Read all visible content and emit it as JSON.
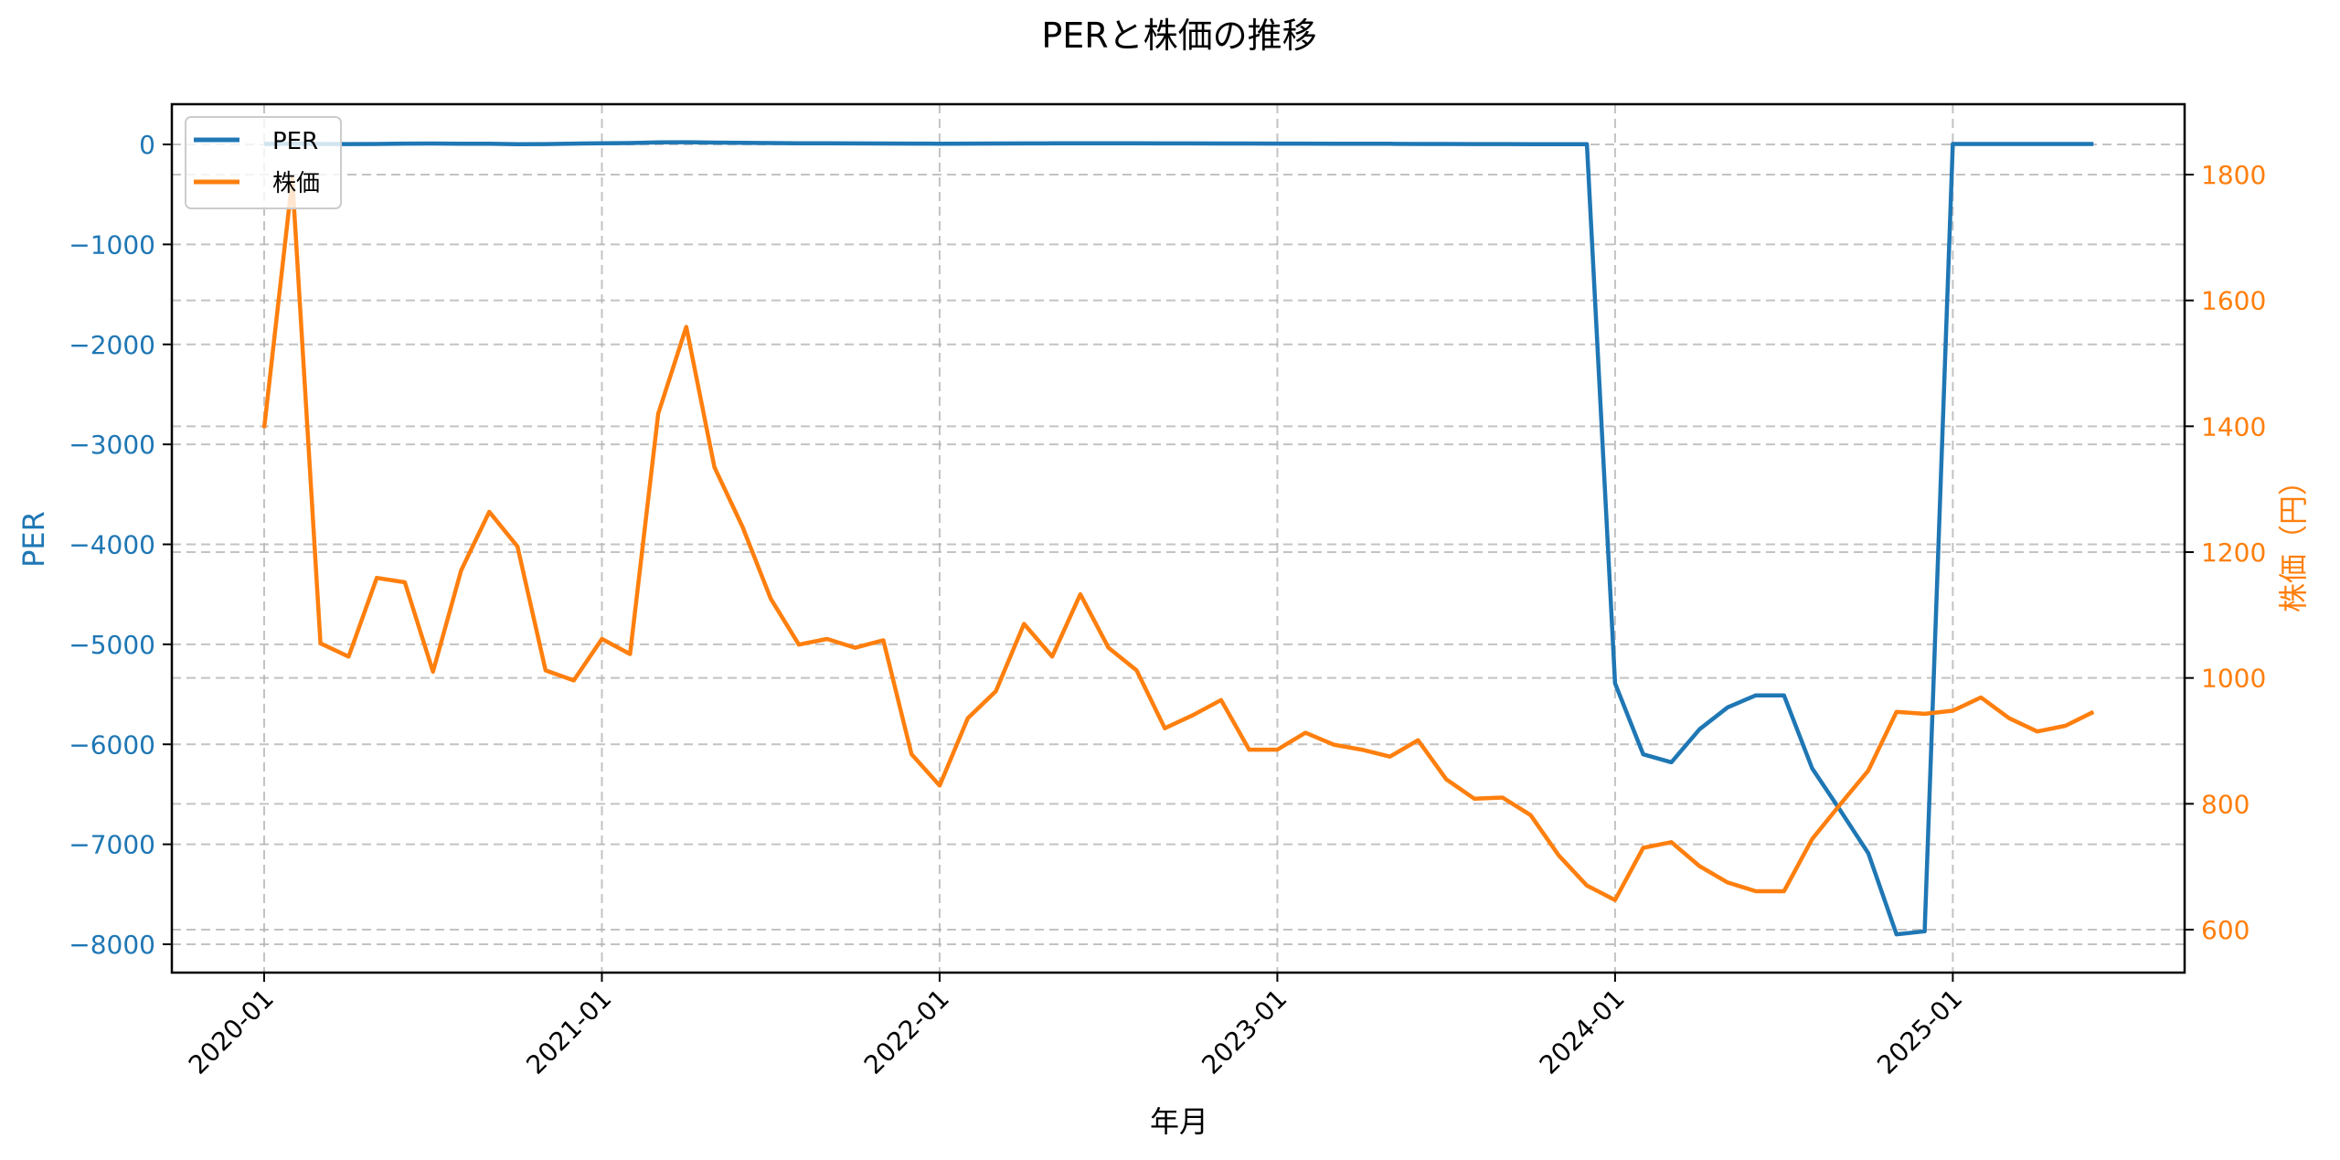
{
  "chart_data": {
    "type": "line",
    "title": "PERと株価の推移",
    "xlabel": "年月",
    "ylabel": "PER",
    "ylabel_right": "株価（円）",
    "ylim": [
      -8300,
      400
    ],
    "ylim_right": [
      535,
      1905
    ],
    "x_ticks": [
      "2020-01",
      "2021-01",
      "2022-01",
      "2023-01",
      "2024-01",
      "2025-01"
    ],
    "y_ticks": [
      0,
      -1000,
      -2000,
      -3000,
      -4000,
      -5000,
      -6000,
      -7000,
      -8000
    ],
    "y_ticks_right": [
      600,
      800,
      1000,
      1200,
      1400,
      1600,
      1800
    ],
    "grid": true,
    "legend_position": "upper left",
    "x": [
      "2020-01",
      "2020-02",
      "2020-03",
      "2020-04",
      "2020-05",
      "2020-06",
      "2020-07",
      "2020-08",
      "2020-09",
      "2020-10",
      "2020-11",
      "2020-12",
      "2021-01",
      "2021-02",
      "2021-03",
      "2021-04",
      "2021-05",
      "2021-06",
      "2021-07",
      "2021-08",
      "2021-09",
      "2021-10",
      "2021-11",
      "2021-12",
      "2022-01",
      "2022-02",
      "2022-03",
      "2022-04",
      "2022-05",
      "2022-06",
      "2022-07",
      "2022-08",
      "2022-09",
      "2022-10",
      "2022-11",
      "2022-12",
      "2023-01",
      "2023-02",
      "2023-03",
      "2023-04",
      "2023-05",
      "2023-06",
      "2023-07",
      "2023-08",
      "2023-09",
      "2023-10",
      "2023-11",
      "2023-12",
      "2024-01",
      "2024-02",
      "2024-03",
      "2024-04",
      "2024-05",
      "2024-06",
      "2024-07",
      "2024-08",
      "2024-09",
      "2024-10",
      "2024-11",
      "2024-12",
      "2025-01",
      "2025-02",
      "2025-03",
      "2025-04",
      "2025-05",
      "2025-06"
    ],
    "series": [
      {
        "name": "PER",
        "axis": "left",
        "color": "#1f77b4",
        "values": [
          5,
          6,
          5,
          4,
          5,
          8,
          9,
          7,
          6,
          3,
          4,
          8,
          12,
          14,
          20,
          22,
          18,
          16,
          14,
          12,
          11,
          10,
          9,
          8,
          7,
          8,
          9,
          10,
          11,
          12,
          12,
          11,
          10,
          10,
          9,
          9,
          8,
          8,
          7,
          7,
          6,
          5,
          5,
          4,
          4,
          3,
          3,
          2,
          -5390,
          -6100,
          -6180,
          -5850,
          -5630,
          -5510,
          -5510,
          -6240,
          -6660,
          -7090,
          -7900,
          -7870,
          5,
          5,
          5,
          5,
          5,
          5
        ]
      },
      {
        "name": "株価",
        "axis": "right",
        "color": "#ff7f0e",
        "values": [
          1397,
          1793,
          1055,
          1034,
          1159,
          1152,
          1010,
          1171,
          1264,
          1209,
          1012,
          996,
          1062,
          1038,
          1420,
          1558,
          1335,
          1240,
          1126,
          1053,
          1062,
          1048,
          1060,
          879,
          829,
          936,
          979,
          1086,
          1034,
          1133,
          1048,
          1012,
          920,
          941,
          965,
          886,
          886,
          913,
          894,
          886,
          875,
          901,
          839,
          808,
          810,
          782,
          718,
          670,
          647,
          730,
          739,
          701,
          675,
          661,
          661,
          744,
          799,
          853,
          946,
          943,
          948,
          969,
          936,
          915,
          924,
          946
        ]
      }
    ]
  },
  "legend": {
    "items": [
      {
        "label": "PER",
        "color": "#1f77b4"
      },
      {
        "label": "株価",
        "color": "#ff7f0e"
      }
    ]
  }
}
